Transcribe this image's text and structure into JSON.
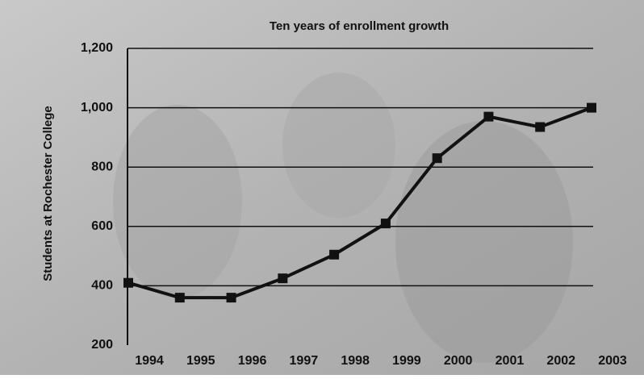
{
  "chart_data": {
    "type": "line",
    "title": "Ten years of enrollment growth",
    "y_label": "Students at Rochester College",
    "categories": [
      "1994",
      "1995",
      "1996",
      "1997",
      "1998",
      "1999",
      "2000",
      "2001",
      "2002",
      "2003"
    ],
    "values": [
      410,
      360,
      360,
      425,
      505,
      610,
      830,
      970,
      935,
      1000
    ],
    "color": "#111111",
    "ylim": [
      200,
      1200
    ],
    "yticks": [
      200,
      400,
      600,
      800,
      {
        "value": 1000,
        "label": "1,000"
      },
      {
        "value": 1200,
        "label": "1,200"
      }
    ],
    "grid": true
  }
}
